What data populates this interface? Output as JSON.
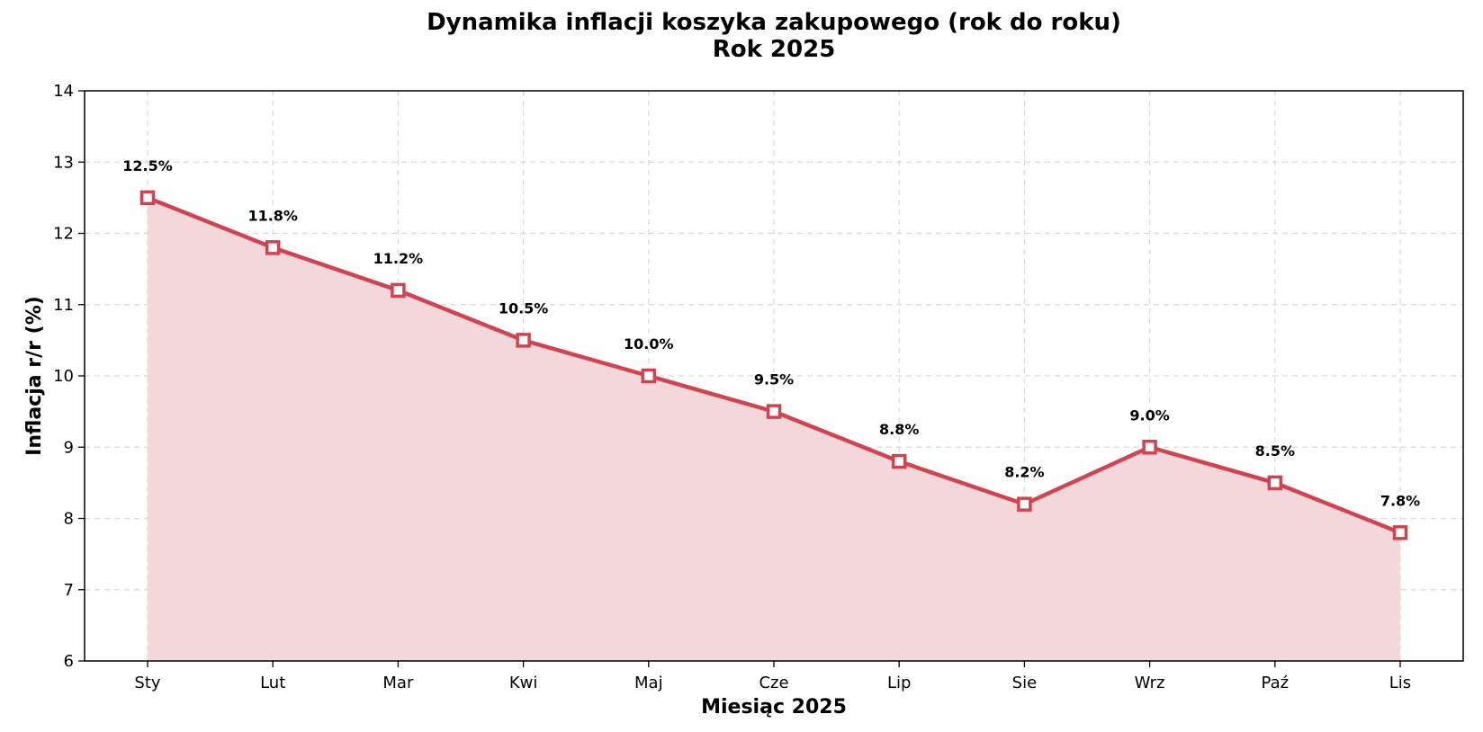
{
  "chart_data": {
    "type": "area",
    "title": "Dynamika inflacji koszyka zakupowego (rok do roku)",
    "subtitle": "Rok 2025",
    "xlabel": "Miesiąc 2025",
    "ylabel": "Inflacja r/r (%)",
    "categories": [
      "Sty",
      "Lut",
      "Mar",
      "Kwi",
      "Maj",
      "Cze",
      "Lip",
      "Sie",
      "Wrz",
      "Paź",
      "Lis"
    ],
    "series": [
      {
        "values": [
          12.5,
          11.8,
          11.2,
          10.5,
          10.0,
          9.5,
          8.8,
          8.2,
          9.0,
          8.5,
          7.8
        ],
        "data_labels": [
          "12.5%",
          "11.8%",
          "11.2%",
          "10.5%",
          "10.0%",
          "9.5%",
          "8.8%",
          "8.2%",
          "9.0%",
          "8.5%",
          "7.8%"
        ]
      }
    ],
    "ylim": [
      6,
      14
    ],
    "yticks": [
      "6",
      "7",
      "8",
      "9",
      "10",
      "11",
      "12",
      "13",
      "14"
    ],
    "grid": true,
    "colors": {
      "line": "#d1444f",
      "fill": "#f4d7da",
      "marker_fill": "#ffffff"
    }
  }
}
